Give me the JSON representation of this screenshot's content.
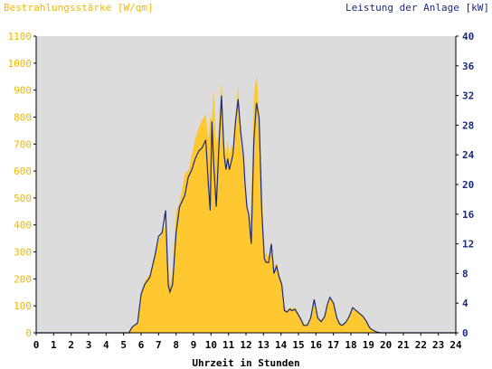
{
  "chart_data": {
    "type": "area",
    "left_axis_title": "Bestrahlungsstärke [W/qm]",
    "right_axis_title": "Leistung der Anlage [kW]",
    "xlabel": "Uhrzeit in Stunden",
    "xlim": [
      0,
      24
    ],
    "x_ticks": [
      "0",
      "1",
      "2",
      "3",
      "4",
      "5",
      "6",
      "7",
      "8",
      "9",
      "10",
      "11",
      "12",
      "13",
      "14",
      "15",
      "16",
      "17",
      "18",
      "19",
      "20",
      "21",
      "22",
      "23",
      "24"
    ],
    "y_left": {
      "lim": [
        0,
        1100
      ],
      "ticks": [
        "0",
        "100",
        "200",
        "300",
        "400",
        "500",
        "600",
        "700",
        "800",
        "900",
        "1000",
        "1100"
      ]
    },
    "y_right": {
      "lim": [
        0,
        40
      ],
      "ticks": [
        "0",
        "4",
        "8",
        "12",
        "16",
        "20",
        "24",
        "28",
        "32",
        "36",
        "40"
      ]
    },
    "grid": false,
    "series": [
      {
        "name": "Bestrahlungsstärke [W/qm]",
        "kind": "area",
        "axis": "left",
        "color": "#ffc830",
        "x": [
          0,
          5.3,
          5.5,
          5.8,
          6.0,
          6.2,
          6.5,
          6.8,
          7.0,
          7.2,
          7.4,
          7.55,
          7.65,
          7.8,
          8.0,
          8.2,
          8.5,
          8.7,
          8.9,
          9.1,
          9.3,
          9.5,
          9.7,
          9.85,
          9.95,
          10.05,
          10.15,
          10.3,
          10.45,
          10.6,
          10.75,
          10.85,
          10.95,
          11.05,
          11.15,
          11.25,
          11.4,
          11.55,
          11.7,
          11.85,
          11.95,
          12.05,
          12.15,
          12.3,
          12.45,
          12.6,
          12.75,
          12.9,
          13.05,
          13.15,
          13.3,
          13.45,
          13.6,
          13.75,
          13.9,
          14.05,
          14.2,
          14.35,
          14.5,
          14.65,
          14.8,
          14.95,
          15.1,
          15.3,
          15.5,
          15.7,
          15.9,
          16.1,
          16.3,
          16.5,
          16.65,
          16.8,
          17.0,
          17.2,
          17.35,
          17.5,
          17.7,
          17.9,
          18.1,
          18.3,
          18.5,
          18.7,
          18.9,
          19.0,
          19.1,
          19.3,
          19.5,
          19.7,
          19.9,
          20.05,
          20.2,
          24
        ],
        "values": [
          0,
          0,
          20,
          40,
          150,
          190,
          220,
          300,
          340,
          370,
          400,
          260,
          180,
          220,
          450,
          480,
          590,
          600,
          660,
          720,
          760,
          790,
          810,
          720,
          800,
          790,
          900,
          700,
          760,
          930,
          700,
          660,
          720,
          650,
          700,
          680,
          800,
          920,
          700,
          640,
          560,
          460,
          400,
          480,
          880,
          960,
          820,
          560,
          280,
          300,
          280,
          340,
          240,
          260,
          220,
          190,
          100,
          80,
          95,
          90,
          95,
          80,
          60,
          35,
          30,
          60,
          120,
          60,
          45,
          60,
          100,
          130,
          110,
          60,
          40,
          30,
          40,
          60,
          90,
          80,
          70,
          60,
          40,
          30,
          20,
          10,
          5,
          0,
          0,
          0,
          0,
          0
        ]
      },
      {
        "name": "Leistung der Anlage [kW]",
        "kind": "line",
        "axis": "right",
        "color": "#1a2a7a",
        "x": [
          0,
          5.3,
          5.5,
          5.8,
          6.0,
          6.2,
          6.5,
          6.8,
          7.0,
          7.2,
          7.4,
          7.55,
          7.65,
          7.8,
          8.0,
          8.2,
          8.5,
          8.7,
          8.9,
          9.1,
          9.3,
          9.5,
          9.7,
          9.85,
          9.95,
          10.05,
          10.15,
          10.3,
          10.45,
          10.6,
          10.75,
          10.85,
          10.95,
          11.05,
          11.15,
          11.25,
          11.4,
          11.55,
          11.7,
          11.85,
          11.95,
          12.05,
          12.15,
          12.3,
          12.45,
          12.6,
          12.75,
          12.9,
          13.05,
          13.15,
          13.3,
          13.45,
          13.6,
          13.75,
          13.9,
          14.05,
          14.2,
          14.35,
          14.5,
          14.65,
          14.8,
          14.95,
          15.1,
          15.3,
          15.5,
          15.7,
          15.9,
          16.1,
          16.3,
          16.5,
          16.65,
          16.8,
          17.0,
          17.2,
          17.35,
          17.5,
          17.7,
          17.9,
          18.1,
          18.3,
          18.5,
          18.7,
          18.9,
          19.0,
          19.1,
          19.3,
          19.5,
          19.7,
          19.9,
          20.05,
          20.2,
          24
        ],
        "values": [
          0,
          0,
          0.8,
          1.3,
          5.2,
          6.5,
          7.5,
          10.5,
          13.0,
          13.5,
          16.5,
          6.5,
          5.5,
          6.5,
          13.5,
          17.0,
          18.5,
          21.0,
          22.0,
          23.5,
          24.5,
          25.0,
          26.0,
          20.0,
          16.5,
          28.5,
          23.0,
          17.0,
          25.0,
          32.0,
          24.0,
          22.0,
          23.5,
          22.0,
          23.0,
          24.0,
          28.5,
          31.5,
          27.0,
          24.0,
          20.0,
          17.0,
          16.0,
          12.0,
          26.0,
          31.0,
          29.0,
          16.5,
          10.0,
          9.5,
          9.5,
          12.0,
          8.0,
          9.0,
          7.5,
          6.5,
          3.0,
          2.8,
          3.2,
          3.0,
          3.2,
          2.6,
          2.0,
          1.0,
          1.0,
          2.0,
          4.5,
          2.0,
          1.5,
          2.2,
          3.8,
          4.8,
          4.0,
          2.0,
          1.2,
          1.0,
          1.4,
          2.2,
          3.4,
          3.0,
          2.6,
          2.2,
          1.5,
          1.0,
          0.6,
          0.3,
          0.1,
          0,
          0,
          0,
          0,
          0
        ]
      }
    ],
    "colors": {
      "background": "#ffffff",
      "plot_background": "#dcdcdc",
      "left_axis_text": "#f0b800",
      "right_axis_text": "#1a2a7a",
      "axis_text": "#000000"
    }
  }
}
